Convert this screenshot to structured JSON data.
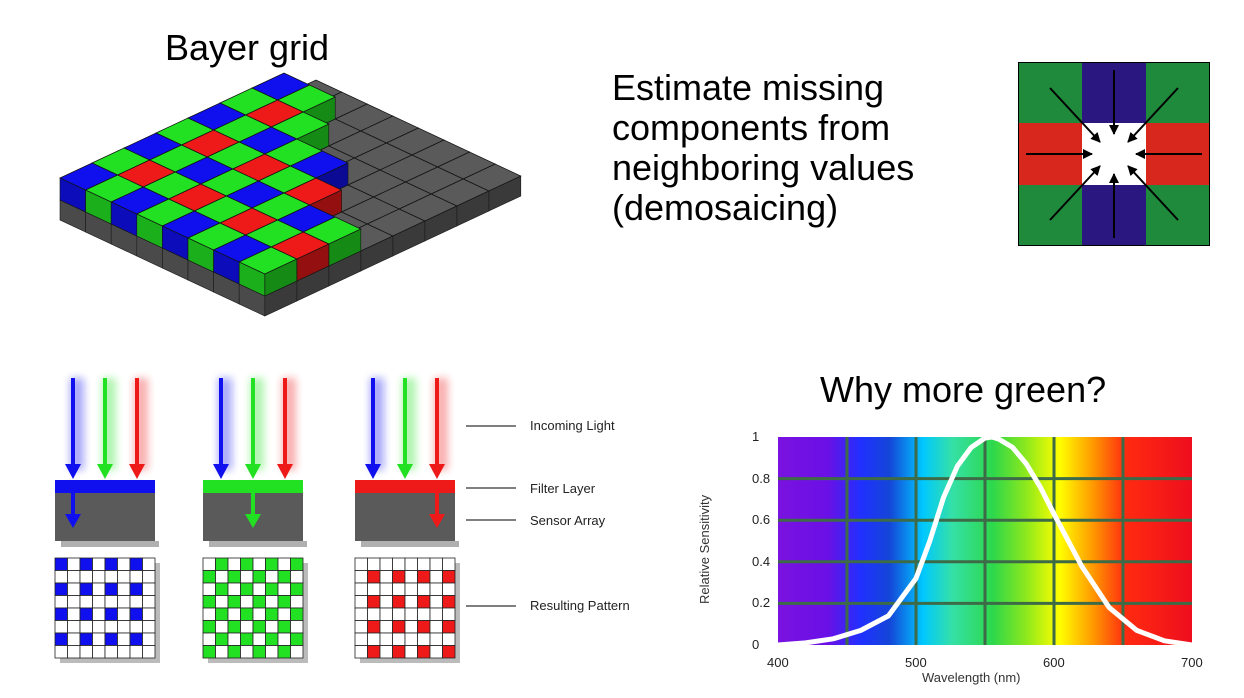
{
  "titles": {
    "bayer": "Bayer grid",
    "why_green": "Why more green?"
  },
  "demosaic": {
    "lines": [
      "Estimate missing",
      "components from",
      "neighboring values",
      "(demosaicing)"
    ]
  },
  "layer_labels": {
    "incoming": "Incoming Light",
    "filter": "Filter Layer",
    "sensor": "Sensor Array",
    "pattern": "Resulting Pattern"
  },
  "colors": {
    "blue": "#1010ee",
    "green": "#22e022",
    "red": "#ee1a1a",
    "gray": "#555555",
    "navy": "#2a1880",
    "dark_green": "#1f8a3c",
    "brick_red": "#d8281e"
  },
  "chart_data": {
    "type": "line",
    "xlabel": "Wavelength (nm)",
    "ylabel": "Relative Sensitivity",
    "xlim": [
      400,
      700
    ],
    "ylim": [
      0,
      1
    ],
    "x_ticks": [
      "400",
      "500",
      "600",
      "700"
    ],
    "y_ticks": [
      "0",
      "0.2",
      "0.4",
      "0.6",
      "0.8",
      "1"
    ],
    "grid": true,
    "background": "visible spectrum",
    "series": [
      {
        "x": [
          400,
          420,
          440,
          460,
          480,
          500,
          510,
          520,
          530,
          540,
          550,
          555,
          560,
          570,
          580,
          590,
          600,
          620,
          640,
          660,
          680,
          700
        ],
        "y": [
          0.0,
          0.01,
          0.03,
          0.07,
          0.14,
          0.32,
          0.5,
          0.71,
          0.86,
          0.95,
          0.995,
          1.0,
          0.99,
          0.95,
          0.87,
          0.76,
          0.63,
          0.38,
          0.18,
          0.07,
          0.02,
          0.0
        ]
      }
    ]
  }
}
